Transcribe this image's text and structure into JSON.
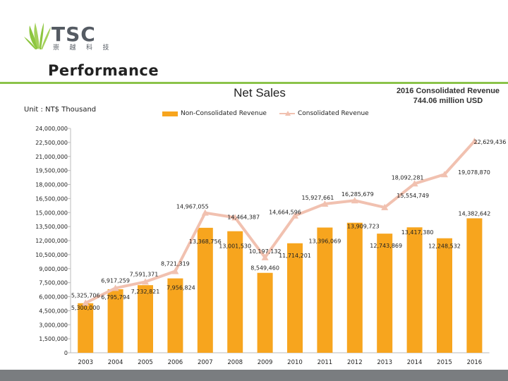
{
  "logo": {
    "text": "TSC",
    "sub": "崇 越 科 技"
  },
  "page": {
    "heading": "Performance"
  },
  "colors": {
    "bar": "#f7a51e",
    "line": "#f1c1b0",
    "accent": "#8bc34a",
    "footer": "#7a7d80"
  },
  "chart_data": {
    "type": "bar",
    "title": "Net Sales",
    "unit_label": "Unit : NT$ Thousand",
    "note": "2016 Consolidated Revenue 744.06 million USD",
    "xlabel": "",
    "ylabel": "",
    "ylim": [
      0,
      24000000
    ],
    "yticks": [
      "24,000,000",
      "22,500,000",
      "21,000,000",
      "19,500,000",
      "18,000,000",
      "16,500,000",
      "15,000,000",
      "13,500,000",
      "12,000,000",
      "10,500,000",
      "9,000,000",
      "7,500,000",
      "6,000,000",
      "4,500,000",
      "3,000,000",
      "1,500,000",
      "0"
    ],
    "categories": [
      "2003",
      "2004",
      "2005",
      "2006",
      "2007",
      "2008",
      "2009",
      "2010",
      "2011",
      "2012",
      "2013",
      "2014",
      "2015",
      "2016"
    ],
    "legend_position": "top",
    "series": [
      {
        "name": "Non-Consolidated Revenue",
        "type": "bar",
        "values": [
          5300000,
          6795794,
          7232821,
          7956824,
          13368756,
          13001530,
          8549460,
          11714201,
          13396069,
          13909723,
          12743869,
          13417380,
          12248532,
          14382642
        ],
        "labels": [
          "5,300,000",
          "6,795,794",
          "7,232,821",
          "7,956,824",
          "13,368,756",
          "13,001,530",
          "8,549,460",
          "11,714,201",
          "13,396,069",
          "13,909,723",
          "12,743,869",
          "13,417,380",
          "12,248,532",
          "14,382,642"
        ]
      },
      {
        "name": "Consolidated Revenue",
        "type": "line",
        "values": [
          5325706,
          6917259,
          7591371,
          8721319,
          14967055,
          14464387,
          10197132,
          14664596,
          15927661,
          16285679,
          15554749,
          18092281,
          19078870,
          22629436
        ],
        "labels": [
          "5,325,706",
          "6,917,259",
          "7,591,371",
          "8,721,319",
          "14,967,055",
          "14,464,387",
          "10,197,132",
          "14,664,596",
          "15,927,661",
          "16,285,679",
          "15,554,749",
          "18,092,281",
          "19,078,870",
          "22,629,436"
        ]
      }
    ]
  }
}
